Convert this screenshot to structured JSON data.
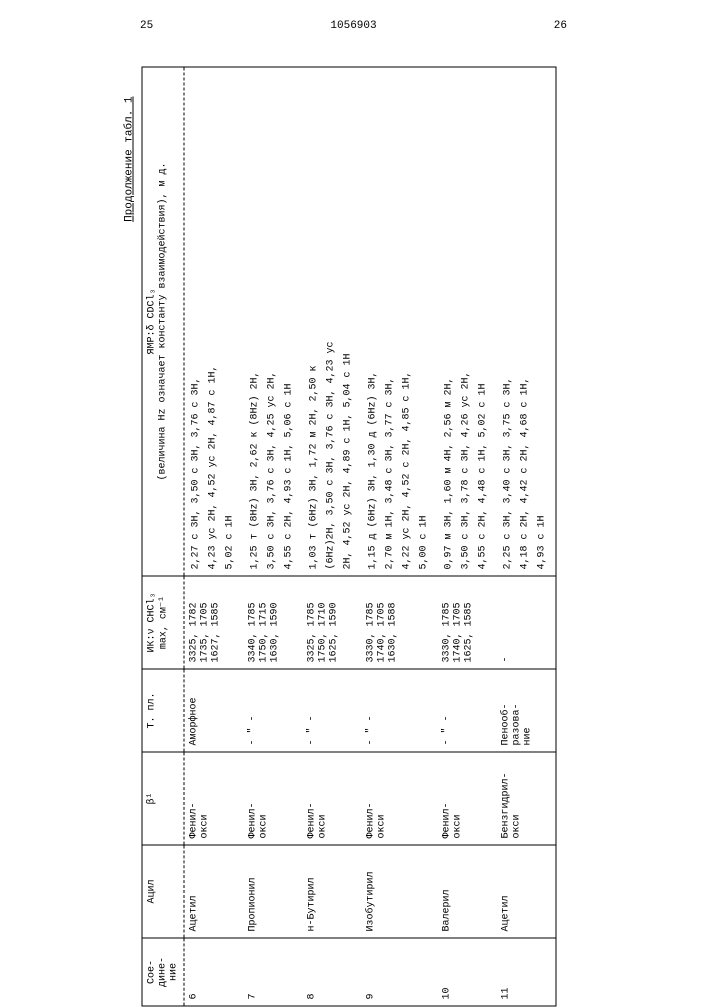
{
  "header": {
    "page_left": "25",
    "doc_number": "1056903",
    "page_right": "26"
  },
  "caption": "Продолжение табл. 1",
  "columns": {
    "compound": "Сое-\nдине-\nние",
    "acyl": "Ацил",
    "beta": "β¹",
    "mp": "Т. пл.",
    "ir": "ИК:ν CHCl₃ max, см⁻¹",
    "nmr": "ЯМР:δ CDCl₃\n(величина Hz означает константу взаимодействия), м д."
  },
  "rows": [
    {
      "compound": "6",
      "acyl": "Ацетил",
      "beta": "Фенил-\nокси",
      "mp": "Аморфное",
      "ir": "3325, 1782\n1735, 1705\n1627, 1585",
      "nmr": [
        "2,27 с 3H, 3,50 с 3H, 3,76 с 3H,",
        "4,23 ус 2H, 4,52 ус 2H, 4,87 с 1H,",
        "5,02 с 1H"
      ]
    },
    {
      "compound": "7",
      "acyl": "Пропионил",
      "beta": "Фенил-\nокси",
      "mp": "- \" -",
      "ir": "3340, 1785\n1750, 1715\n1630, 1590",
      "nmr": [
        "1,25 т (8Hz) 3H, 2,62 к (8Hz) 2H,",
        "3,50 с 3H, 3,76 с 3H, 4,25 ус 2H,",
        "4,55 с 2H, 4,93 с 1H, 5,06 с 1H"
      ]
    },
    {
      "compound": "8",
      "acyl": "н-Бутирил",
      "beta": "Фенил-\nокси",
      "mp": "- \" -",
      "ir": "3325, 1785\n1750, 1710\n1625, 1590",
      "nmr": [
        "1,03 т (6Hz) 3H, 1,72 м 2H, 2,50 к",
        "(6Hz)2H, 3,50 с 3H, 3,76 с 3H, 4,23 ус",
        "2H, 4,52 ус 2H, 4,89 с 1H, 5,04 с 1H"
      ]
    },
    {
      "compound": "9",
      "acyl": "Изобутирил",
      "beta": "Фенил-\nокси",
      "mp": "- \" -",
      "ir": "3330, 1785\n1740, 1705\n1630, 1588",
      "nmr": [
        "1,15 д (6Hz) 3H, 1,30 д (6Hz) 3H,",
        "2,70 м 1H, 3,48 с 3H, 3,77 с 3H,",
        "4,22 ус 2H, 4,52 с 2H, 4,85 с 1H,",
        "5,00 с 1H"
      ]
    },
    {
      "compound": "10",
      "acyl": "Валерил",
      "beta": "Фенил-\nокси",
      "mp": "- \" -",
      "ir": "3330, 1785\n1740, 1705\n1625, 1585",
      "nmr": [
        "0,97 м 3H, 1,60 м 4H, 2,56 м 2H,",
        "3,50 с 3H, 3,78 с 3H, 4,26 ус 2H,",
        "4,55 с 2H, 4,48 с 1H, 5,02 с 1H"
      ]
    },
    {
      "compound": "11",
      "acyl": "Ацетил",
      "beta": "Бензгидрил-\nокси",
      "mp": "Пенооб-\nразова-\nние",
      "ir": "-",
      "nmr": [
        "2,25 с 3H, 3,40 с 3H, 3,75 с 3H,",
        "4,18 с 2H, 4,42 с 2H, 4,68 с 1H,",
        "4,93 с 1H"
      ]
    }
  ]
}
